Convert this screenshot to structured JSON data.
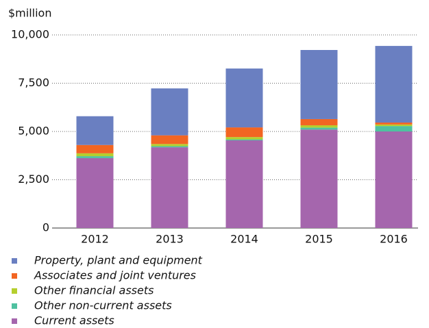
{
  "chart_data": {
    "type": "stacked_bar",
    "y_label": "$million",
    "categories": [
      "2012",
      "2013",
      "2014",
      "2015",
      "2016"
    ],
    "series": [
      {
        "name": "Property, plant and equipment",
        "color": "#6a7fc1",
        "values": [
          1490,
          2430,
          3050,
          3580,
          3970
        ]
      },
      {
        "name": "Associates and joint ventures",
        "color": "#f26522",
        "values": [
          430,
          450,
          500,
          320,
          100
        ]
      },
      {
        "name": "Other financial assets",
        "color": "#b5cf2e",
        "values": [
          150,
          110,
          120,
          120,
          80
        ]
      },
      {
        "name": "Other non-current assets",
        "color": "#4fc1a0",
        "values": [
          100,
          60,
          50,
          100,
          280
        ]
      },
      {
        "name": "Current assets",
        "color": "#a566ad",
        "values": [
          3620,
          4180,
          4540,
          5100,
          5000
        ]
      }
    ],
    "ylim": [
      0,
      10000
    ],
    "yticks": [
      0,
      {
        "value": 2500,
        "label": "2,500"
      },
      {
        "value": 5000,
        "label": "5,000"
      },
      {
        "value": 7500,
        "label": "7,500"
      },
      {
        "value": 10000,
        "label": "10,000"
      }
    ],
    "grid": true
  }
}
